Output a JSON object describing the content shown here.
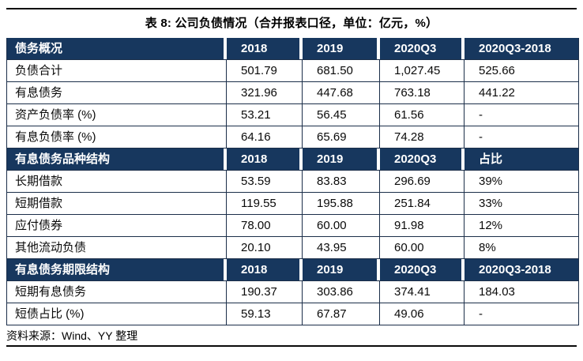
{
  "title": "表 8: 公司负债情况（合并报表口径，单位：亿元，%）",
  "source_note": "资料来源：Wind、YY 整理",
  "colors": {
    "header_bg": "#17375E",
    "header_text": "#FFFFFF",
    "table_line": "#1B2E49"
  },
  "table": {
    "sections": [
      {
        "header": [
          "债务概况",
          "2018",
          "2019",
          "2020Q3",
          "2020Q3-2018"
        ],
        "rows": [
          [
            "负债合计",
            "501.79",
            "681.50",
            "1,027.45",
            "525.66"
          ],
          [
            "有息债务",
            "321.96",
            "447.68",
            "763.18",
            "441.22"
          ],
          [
            "资产负债率 (%)",
            "53.21",
            "56.45",
            "61.56",
            "-"
          ],
          [
            "有息负债率 (%)",
            "64.16",
            "65.69",
            "74.28",
            "-"
          ]
        ]
      },
      {
        "header": [
          "有息债务品种结构",
          "2018",
          "2019",
          "2020Q3",
          "占比"
        ],
        "rows": [
          [
            "长期借款",
            "53.59",
            "83.83",
            "296.69",
            "39%"
          ],
          [
            "短期借款",
            "119.55",
            "195.88",
            "251.84",
            "33%"
          ],
          [
            "应付债券",
            "78.00",
            "60.00",
            "91.98",
            "12%"
          ],
          [
            "其他流动负债",
            "20.10",
            "43.95",
            "60.00",
            "8%"
          ]
        ]
      },
      {
        "header": [
          "有息债务期限结构",
          "2018",
          "2019",
          "2020Q3",
          "2020Q3-2018"
        ],
        "rows": [
          [
            "短期有息债务",
            "190.37",
            "303.86",
            "374.41",
            "184.03"
          ],
          [
            "短债占比 (%)",
            "59.13",
            "67.87",
            "49.06",
            "-"
          ]
        ]
      }
    ]
  }
}
